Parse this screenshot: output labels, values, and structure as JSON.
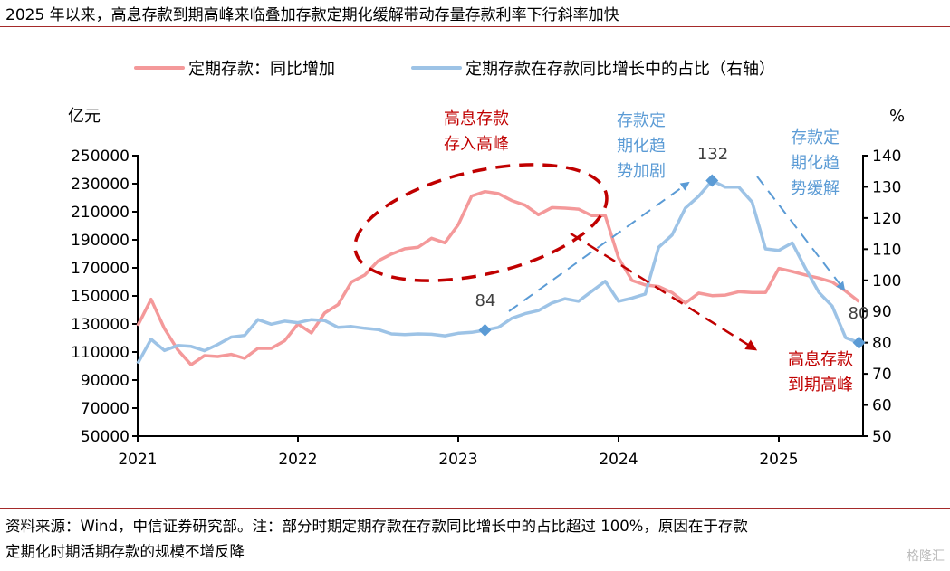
{
  "title": "2025 年以来，高息存款到期高峰来临叠加存款定期化缓解带动存量存款利率下行斜率加快",
  "source_line1": "资料来源：Wind，中信证券研究部。注：部分时期定期存款在存款同比增长中的占比超过 100%，原因在于存款",
  "source_line2": "定期化时期活期存款的规模不增反降",
  "watermark": "格隆汇",
  "colors": {
    "pink": "#f4999a",
    "blue": "#9dc3e6",
    "darkred": "#c00000",
    "arrowblue": "#5b9bd5",
    "rule": "#a52a2a"
  },
  "chart_data": {
    "type": "line",
    "title": "",
    "x_start": "2021-01",
    "x_frequency": "monthly",
    "xticks": [
      "2021",
      "2022",
      "2023",
      "2024",
      "2025"
    ],
    "left_axis": {
      "label": "亿元",
      "ylim": [
        50000,
        250000
      ],
      "ticks": [
        "250000",
        "230000",
        "210000",
        "190000",
        "170000",
        "150000",
        "130000",
        "110000",
        "90000",
        "70000",
        "50000"
      ]
    },
    "right_axis": {
      "label": "%",
      "ylim": [
        50,
        140
      ],
      "ticks": [
        "140",
        "130",
        "120",
        "110",
        "100",
        "90",
        "80",
        "70",
        "60",
        "50"
      ]
    },
    "legend_position": "top-center",
    "series": [
      {
        "name": "定期存款：同比增加",
        "axis": "left",
        "color": "#f4999a",
        "values": [
          128700,
          147600,
          126800,
          111500,
          100900,
          107400,
          106800,
          108300,
          105500,
          112600,
          112600,
          118000,
          130000,
          123600,
          137800,
          143800,
          159900,
          164900,
          175000,
          179900,
          183600,
          184700,
          191100,
          187900,
          200800,
          221200,
          224400,
          223000,
          218000,
          214700,
          207900,
          213000,
          212600,
          211900,
          207200,
          207200,
          177100,
          161000,
          157800,
          156700,
          152400,
          144900,
          152000,
          150200,
          150600,
          153000,
          152400,
          152400,
          169600,
          167400,
          164900,
          162700,
          159900,
          153400,
          146000
        ]
      },
      {
        "name": "定期存款在存款同比增长中的占比（右轴）",
        "axis": "right",
        "color": "#9dc3e6",
        "values": [
          73.3,
          81.1,
          77.5,
          79.1,
          78.8,
          77.4,
          79.4,
          81.8,
          82.3,
          87.4,
          85.9,
          86.9,
          86.4,
          87.4,
          87.1,
          84.9,
          85.2,
          84.6,
          84.2,
          82.8,
          82.6,
          82.8,
          82.7,
          82.2,
          83.0,
          83.3,
          84.0,
          84.9,
          87.8,
          89.3,
          90.3,
          92.7,
          94.1,
          93.3,
          96.5,
          99.7,
          93.3,
          94.3,
          95.6,
          110.6,
          114.5,
          123.2,
          127.0,
          132.0,
          129.9,
          129.9,
          125.1,
          110.1,
          109.6,
          112.0,
          103.8,
          96.1,
          91.7,
          81.6,
          80.0
        ]
      }
    ],
    "markers": [
      {
        "series": 1,
        "index": 26,
        "label": "84"
      },
      {
        "series": 1,
        "index": 43,
        "label": "132"
      },
      {
        "series": 1,
        "index": 54,
        "label": "80"
      }
    ],
    "annotations": [
      {
        "lines": [
          "高息存款",
          "存入高峰"
        ],
        "color": "#c00000"
      },
      {
        "lines": [
          "存款定",
          "期化趋",
          "势加剧"
        ],
        "color": "#5b9bd5"
      },
      {
        "lines": [
          "存款定",
          "期化趋",
          "势缓解"
        ],
        "color": "#5b9bd5"
      },
      {
        "lines": [
          "高息存款",
          "到期高峰"
        ],
        "color": "#c00000"
      }
    ]
  }
}
